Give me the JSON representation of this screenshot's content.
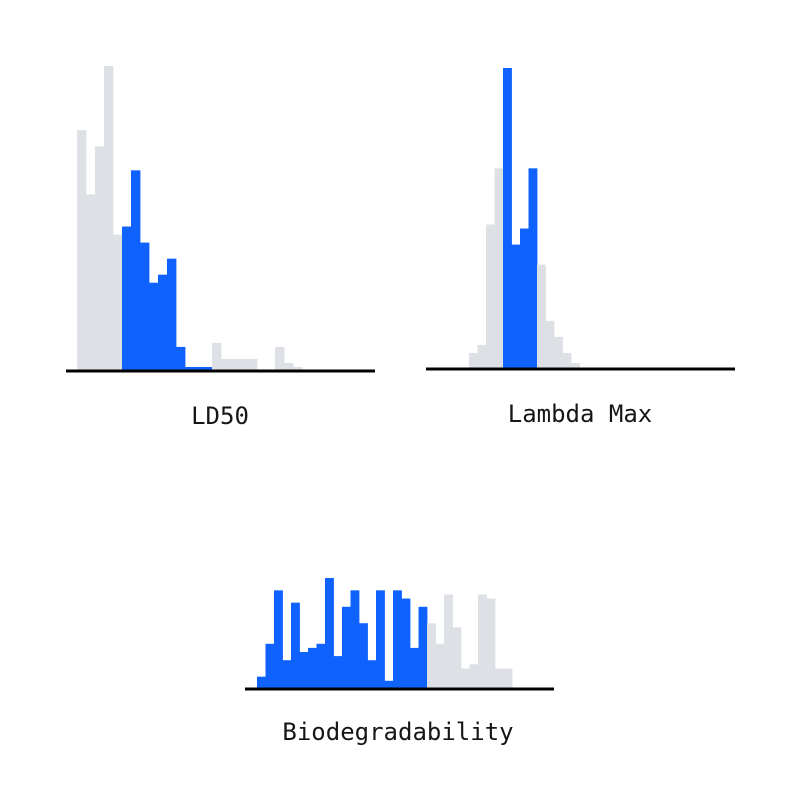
{
  "colors": {
    "highlight": "#0f62fe",
    "background_bars": "#dde1e6",
    "axis": "#000000",
    "text": "#161616"
  },
  "chart_data": [
    {
      "type": "bar",
      "title": "LD50",
      "bin_count": 25,
      "values": [
        30,
        22,
        28,
        38,
        17,
        18,
        25,
        16,
        11,
        12,
        14,
        3,
        0.5,
        0.5,
        0.5,
        3.5,
        1.5,
        1.5,
        1.5,
        1.5,
        0,
        0,
        3,
        1,
        0.5
      ],
      "highlighted": [
        false,
        false,
        false,
        false,
        false,
        true,
        true,
        true,
        true,
        true,
        true,
        true,
        true,
        true,
        true,
        false,
        false,
        false,
        false,
        false,
        false,
        false,
        false,
        false,
        false
      ]
    },
    {
      "type": "bar",
      "title": "Lambda Max",
      "bin_count": 14,
      "values": [
        4,
        6,
        36,
        50,
        75,
        31,
        35,
        50,
        26,
        12,
        8,
        4,
        1.5,
        0
      ],
      "highlighted": [
        false,
        false,
        false,
        false,
        true,
        true,
        true,
        true,
        false,
        false,
        false,
        false,
        false,
        false
      ]
    },
    {
      "type": "bar",
      "title": "Biodegradability",
      "bin_count": 31,
      "values": [
        3,
        11,
        24,
        7,
        21,
        9,
        10,
        11,
        27,
        8,
        20,
        24,
        16,
        7,
        24,
        2,
        24,
        22,
        10,
        20,
        16,
        11,
        23,
        15,
        5,
        6,
        23,
        22,
        5,
        5,
        0
      ],
      "highlighted": [
        true,
        true,
        true,
        true,
        true,
        true,
        true,
        true,
        true,
        true,
        true,
        true,
        true,
        true,
        true,
        true,
        true,
        true,
        true,
        true,
        false,
        false,
        false,
        false,
        false,
        false,
        false,
        false,
        false,
        false,
        false
      ]
    }
  ]
}
